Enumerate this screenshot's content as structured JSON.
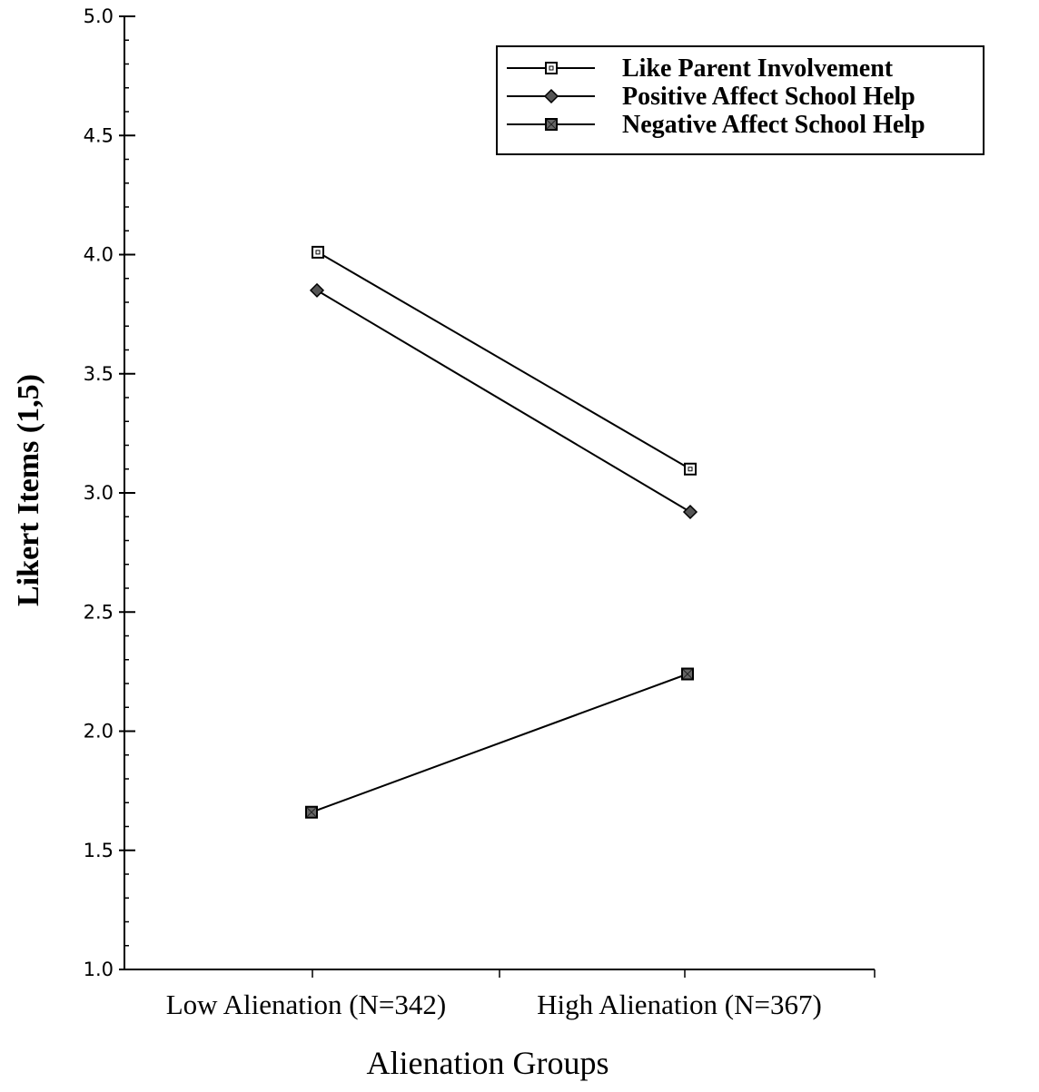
{
  "chart_data": {
    "type": "line",
    "title": "",
    "xlabel": "Alienation Groups",
    "ylabel": "Likert  Items  (1,5)",
    "categories": [
      "Low Alienation (N=342)",
      "High Alienation (N=367)"
    ],
    "ylim": [
      1.0,
      5.0
    ],
    "yticks": [
      "1.0",
      "1.5",
      "2.0",
      "2.5",
      "3.0",
      "3.5",
      "4.0",
      "4.5",
      "5.0"
    ],
    "legend_position": "top-right",
    "grid": false,
    "series": [
      {
        "name": "Like Parent Involvement",
        "marker": "open-square",
        "values": [
          4.01,
          3.1
        ]
      },
      {
        "name": "Positive Affect School Help",
        "marker": "diamond",
        "values": [
          3.85,
          2.92
        ]
      },
      {
        "name": "Negative Affect School Help",
        "marker": "filled-square",
        "values": [
          1.66,
          2.24
        ]
      }
    ]
  }
}
